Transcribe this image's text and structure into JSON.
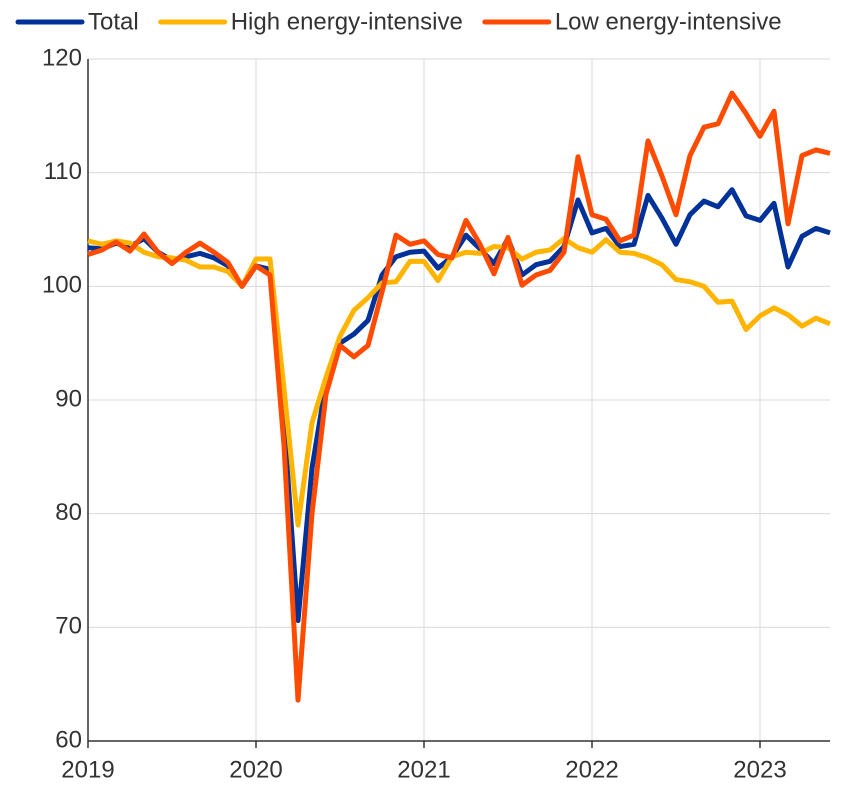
{
  "chart_data": {
    "type": "line",
    "categories": [
      "2019",
      null,
      null,
      null,
      null,
      null,
      null,
      null,
      null,
      null,
      null,
      null,
      "2020",
      null,
      null,
      null,
      null,
      null,
      null,
      null,
      null,
      null,
      null,
      null,
      "2021",
      null,
      null,
      null,
      null,
      null,
      null,
      null,
      null,
      null,
      null,
      null,
      "2022",
      null,
      null,
      null,
      null,
      null,
      null,
      null,
      null,
      null,
      null,
      null,
      "2023",
      null,
      null,
      null,
      null,
      null
    ],
    "ylim": [
      60,
      120
    ],
    "yticks": [
      60,
      70,
      80,
      90,
      100,
      110,
      120
    ],
    "grid": true,
    "series": [
      {
        "name": "Total",
        "color": "#003299",
        "values": [
          103.4,
          103.3,
          103.8,
          103.5,
          104.2,
          103.0,
          102.3,
          102.6,
          102.9,
          102.5,
          101.8,
          100.0,
          101.8,
          101.5,
          88,
          70.6,
          84,
          91.5,
          95,
          95.8,
          97,
          101,
          102.6,
          103,
          103.1,
          101.6,
          102.6,
          104.5,
          103.3,
          102,
          104.2,
          101,
          101.9,
          102.2,
          103.5,
          107.6,
          104.7,
          105.1,
          103.5,
          103.7,
          108,
          106,
          103.7,
          106.3,
          107.5,
          107,
          108.5,
          106.2,
          105.8,
          107.3,
          101.7,
          104.4,
          105.1,
          104.7
        ]
      },
      {
        "name": "High energy-intensive",
        "color": "#ffb400",
        "values": [
          104,
          103.7,
          104,
          103.8,
          103,
          102.6,
          102.5,
          102.3,
          101.7,
          101.7,
          101.3,
          100,
          102.4,
          102.4,
          91,
          79,
          88,
          92,
          95.6,
          97.9,
          99,
          100.3,
          100.4,
          102.2,
          102.2,
          100.5,
          102.6,
          103,
          102.9,
          103.5,
          103.4,
          102.4,
          103,
          103.2,
          104.2,
          103.4,
          103,
          104.1,
          103,
          102.9,
          102.5,
          101.9,
          100.6,
          100.4,
          100,
          98.6,
          98.7,
          96.2,
          97.4,
          98.1,
          97.5,
          96.5,
          97.2,
          96.7
        ]
      },
      {
        "name": "Low energy-intensive",
        "color": "#ff4b00",
        "values": [
          102.8,
          103.2,
          103.9,
          103.1,
          104.6,
          103,
          102,
          103,
          103.8,
          103,
          102.1,
          100,
          101.8,
          101,
          86,
          63.6,
          80,
          90.5,
          94.8,
          93.8,
          94.8,
          99.5,
          104.5,
          103.7,
          104,
          102.8,
          102.5,
          105.8,
          103.7,
          101.1,
          104.3,
          100.1,
          101,
          101.4,
          103,
          111.4,
          106.3,
          105.9,
          104,
          104.5,
          112.8,
          109.7,
          106.3,
          111.5,
          114,
          114.3,
          117,
          115.2,
          113.2,
          115.4,
          105.5,
          111.5,
          112,
          111.7
        ]
      }
    ]
  }
}
